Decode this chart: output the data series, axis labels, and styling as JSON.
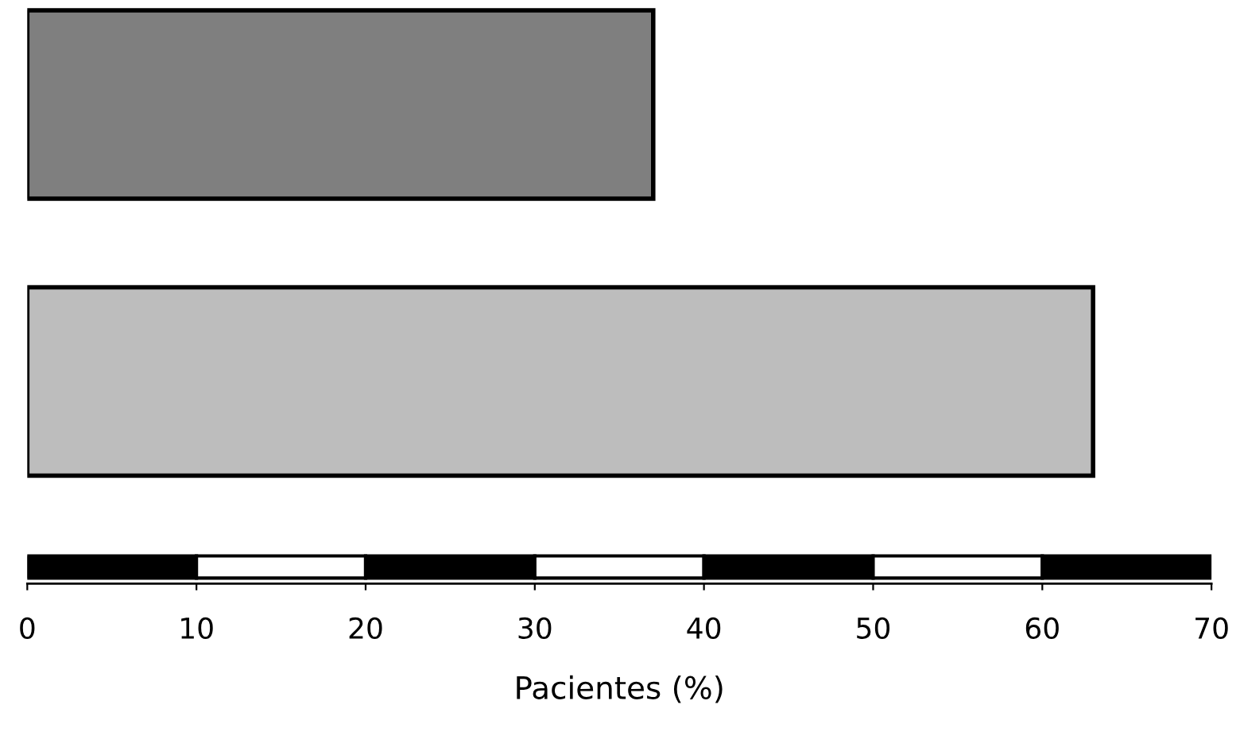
{
  "chart_data": {
    "type": "bar",
    "orientation": "horizontal",
    "categories": [
      null,
      null
    ],
    "values": [
      37,
      63
    ],
    "colors": [
      "#7f7f7f",
      "#bdbdbd"
    ],
    "xlim": [
      0,
      70
    ],
    "xticks": [
      0,
      10,
      20,
      30,
      40,
      50,
      60,
      70
    ],
    "xlabel": "Pacientes (%)",
    "grid": false,
    "tick_labels": "x"
  }
}
